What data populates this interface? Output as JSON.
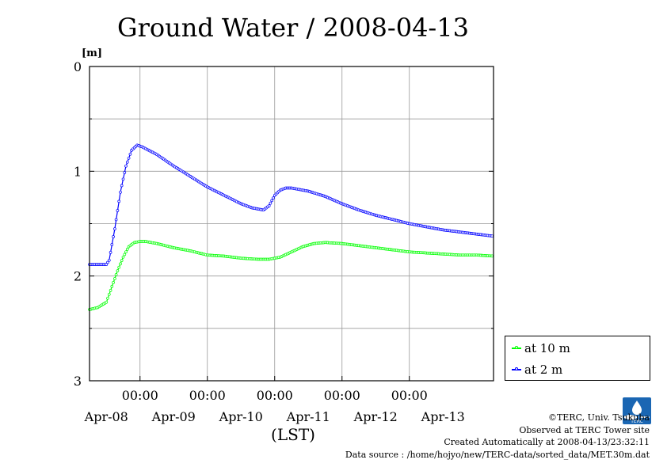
{
  "chart_data": {
    "type": "line",
    "title": "Ground Water / 2008-04-13",
    "ylabel": "[m]",
    "xlabel": "(LST)",
    "ylim": [
      3,
      0
    ],
    "y_ticks": [
      "0",
      "1",
      "2",
      "3"
    ],
    "x_ticks": [
      "00:00",
      "00:00",
      "00:00",
      "00:00",
      "00:00"
    ],
    "x_day_labels": [
      "Apr-08",
      "Apr-09",
      "Apr-10",
      "Apr-11",
      "Apr-12",
      "Apr-13"
    ],
    "x_range_hours": [
      0,
      144
    ],
    "grid": true,
    "legend_position": "bottom-right, outside plot",
    "series": [
      {
        "name": "at 10 m",
        "color": "#00ff00",
        "points": [
          [
            0,
            2.32
          ],
          [
            3,
            2.3
          ],
          [
            6,
            2.25
          ],
          [
            8,
            2.1
          ],
          [
            10,
            1.95
          ],
          [
            12,
            1.82
          ],
          [
            14,
            1.72
          ],
          [
            16,
            1.68
          ],
          [
            18,
            1.67
          ],
          [
            20,
            1.67
          ],
          [
            24,
            1.69
          ],
          [
            30,
            1.73
          ],
          [
            36,
            1.76
          ],
          [
            42,
            1.8
          ],
          [
            48,
            1.81
          ],
          [
            54,
            1.83
          ],
          [
            60,
            1.84
          ],
          [
            64,
            1.84
          ],
          [
            68,
            1.82
          ],
          [
            72,
            1.77
          ],
          [
            76,
            1.72
          ],
          [
            80,
            1.69
          ],
          [
            84,
            1.68
          ],
          [
            90,
            1.69
          ],
          [
            96,
            1.71
          ],
          [
            102,
            1.73
          ],
          [
            108,
            1.75
          ],
          [
            114,
            1.77
          ],
          [
            120,
            1.78
          ],
          [
            126,
            1.79
          ],
          [
            132,
            1.8
          ],
          [
            138,
            1.8
          ],
          [
            144,
            1.81
          ]
        ]
      },
      {
        "name": "at 2 m",
        "color": "#0000ff",
        "points": [
          [
            0,
            1.89
          ],
          [
            3,
            1.89
          ],
          [
            6,
            1.89
          ],
          [
            7,
            1.85
          ],
          [
            9,
            1.55
          ],
          [
            11,
            1.2
          ],
          [
            13,
            0.95
          ],
          [
            15,
            0.8
          ],
          [
            17,
            0.75
          ],
          [
            19,
            0.77
          ],
          [
            24,
            0.84
          ],
          [
            30,
            0.95
          ],
          [
            36,
            1.05
          ],
          [
            42,
            1.15
          ],
          [
            48,
            1.23
          ],
          [
            54,
            1.31
          ],
          [
            58,
            1.35
          ],
          [
            62,
            1.37
          ],
          [
            64,
            1.33
          ],
          [
            66,
            1.23
          ],
          [
            68,
            1.18
          ],
          [
            70,
            1.16
          ],
          [
            72,
            1.16
          ],
          [
            78,
            1.19
          ],
          [
            84,
            1.24
          ],
          [
            90,
            1.31
          ],
          [
            96,
            1.37
          ],
          [
            102,
            1.42
          ],
          [
            108,
            1.46
          ],
          [
            114,
            1.5
          ],
          [
            120,
            1.53
          ],
          [
            126,
            1.56
          ],
          [
            132,
            1.58
          ],
          [
            138,
            1.6
          ],
          [
            144,
            1.62
          ]
        ]
      }
    ]
  },
  "credits": {
    "copyright": "©TERC, Univ. Tsukuba",
    "observed": "Observed at TERC Tower site",
    "created": "Created Automatically at 2008-04-13/23:32:11",
    "source": "Data source : /home/hojyo/new/TERC-data/sorted_data/MET.30m.dat"
  },
  "logo": {
    "label": "TERC"
  }
}
